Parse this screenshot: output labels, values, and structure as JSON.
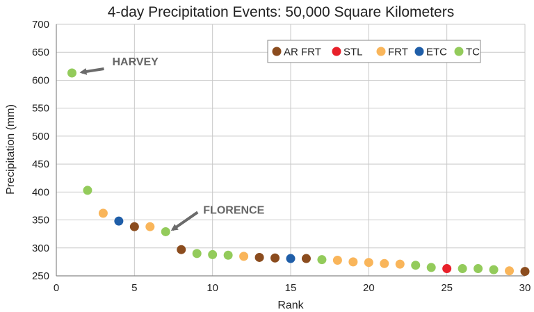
{
  "chart_data": {
    "type": "scatter",
    "title": "4-day Precipitation Events: 50,000 Square Kilometers",
    "xlabel": "Rank",
    "ylabel": "Precipitation (mm)",
    "xlim": [
      0,
      30
    ],
    "ylim": [
      250,
      700
    ],
    "xticks": [
      0,
      5,
      10,
      15,
      20,
      25,
      30
    ],
    "yticks": [
      250,
      300,
      350,
      400,
      450,
      500,
      550,
      600,
      650,
      700
    ],
    "grid": true,
    "legend_position": "top-right",
    "categories": [
      {
        "key": "AR FRT",
        "label": "AR FRT",
        "color": "#8B4C1E"
      },
      {
        "key": "STL",
        "label": "STL",
        "color": "#E8202A"
      },
      {
        "key": "FRT",
        "label": "FRT",
        "color": "#F9B55A"
      },
      {
        "key": "ETC",
        "label": "ETC",
        "color": "#1F5EA8"
      },
      {
        "key": "TC",
        "label": "TC",
        "color": "#93CB5B"
      }
    ],
    "points": [
      {
        "x": 1,
        "y": 613,
        "cat": "TC"
      },
      {
        "x": 2,
        "y": 403,
        "cat": "TC"
      },
      {
        "x": 3,
        "y": 362,
        "cat": "FRT"
      },
      {
        "x": 4,
        "y": 348,
        "cat": "ETC"
      },
      {
        "x": 5,
        "y": 338,
        "cat": "AR FRT"
      },
      {
        "x": 6,
        "y": 338,
        "cat": "FRT"
      },
      {
        "x": 7,
        "y": 329,
        "cat": "TC"
      },
      {
        "x": 8,
        "y": 297,
        "cat": "AR FRT"
      },
      {
        "x": 9,
        "y": 290,
        "cat": "TC"
      },
      {
        "x": 10,
        "y": 288,
        "cat": "TC"
      },
      {
        "x": 11,
        "y": 287,
        "cat": "TC"
      },
      {
        "x": 12,
        "y": 285,
        "cat": "FRT"
      },
      {
        "x": 13,
        "y": 283,
        "cat": "AR FRT"
      },
      {
        "x": 14,
        "y": 282,
        "cat": "AR FRT"
      },
      {
        "x": 15,
        "y": 281,
        "cat": "ETC"
      },
      {
        "x": 16,
        "y": 281,
        "cat": "AR FRT"
      },
      {
        "x": 17,
        "y": 279,
        "cat": "TC"
      },
      {
        "x": 18,
        "y": 278,
        "cat": "FRT"
      },
      {
        "x": 19,
        "y": 275,
        "cat": "FRT"
      },
      {
        "x": 20,
        "y": 274,
        "cat": "FRT"
      },
      {
        "x": 21,
        "y": 272,
        "cat": "FRT"
      },
      {
        "x": 22,
        "y": 271,
        "cat": "FRT"
      },
      {
        "x": 23,
        "y": 269,
        "cat": "TC"
      },
      {
        "x": 24,
        "y": 265,
        "cat": "TC"
      },
      {
        "x": 25,
        "y": 263,
        "cat": "STL"
      },
      {
        "x": 26,
        "y": 263,
        "cat": "TC"
      },
      {
        "x": 27,
        "y": 263,
        "cat": "TC"
      },
      {
        "x": 28,
        "y": 261,
        "cat": "TC"
      },
      {
        "x": 29,
        "y": 259,
        "cat": "FRT"
      },
      {
        "x": 30,
        "y": 258,
        "cat": "AR FRT"
      }
    ],
    "annotations": [
      {
        "text": "HARVEY",
        "point_rank": 1
      },
      {
        "text": "FLORENCE",
        "point_rank": 7
      }
    ]
  }
}
